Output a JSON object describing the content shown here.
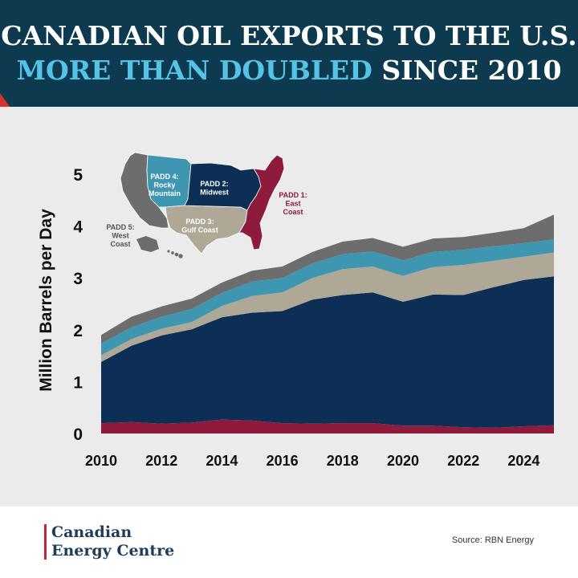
{
  "header": {
    "title_line1": "CANADIAN OIL EXPORTS TO THE U.S.",
    "title_line2_highlight": "MORE THAN DOUBLED",
    "title_line2_rest": " SINCE 2010",
    "colors": {
      "background": "#0d3a4f",
      "highlight": "#55c3e8",
      "accent": "#d8312b"
    }
  },
  "chart_data": {
    "type": "area",
    "stacked": true,
    "x": [
      2010,
      2011,
      2012,
      2013,
      2014,
      2015,
      2016,
      2017,
      2018,
      2019,
      2020,
      2021,
      2022,
      2023,
      2024,
      2025
    ],
    "series": [
      {
        "name": "PADD 1: East Coast",
        "color": "#8e1b3c",
        "values": [
          0.2,
          0.22,
          0.19,
          0.21,
          0.27,
          0.25,
          0.2,
          0.19,
          0.2,
          0.2,
          0.15,
          0.15,
          0.12,
          0.11,
          0.14,
          0.16
        ]
      },
      {
        "name": "PADD 2: Midwest",
        "color": "#0d2f55",
        "values": [
          1.18,
          1.47,
          1.7,
          1.8,
          1.97,
          2.08,
          2.16,
          2.39,
          2.47,
          2.52,
          2.39,
          2.53,
          2.55,
          2.71,
          2.82,
          2.87
        ]
      },
      {
        "name": "PADD 3: Gulf Coast",
        "color": "#b0a896",
        "values": [
          0.13,
          0.13,
          0.13,
          0.14,
          0.22,
          0.32,
          0.36,
          0.42,
          0.5,
          0.5,
          0.5,
          0.53,
          0.58,
          0.51,
          0.45,
          0.46
        ]
      },
      {
        "name": "PADD 4: Rocky Mountain",
        "color": "#3e96b1",
        "values": [
          0.22,
          0.23,
          0.23,
          0.25,
          0.25,
          0.28,
          0.28,
          0.28,
          0.29,
          0.29,
          0.3,
          0.29,
          0.29,
          0.28,
          0.26,
          0.25
        ]
      },
      {
        "name": "PADD 5: West Coast",
        "color": "#6d6d6d",
        "values": [
          0.17,
          0.2,
          0.2,
          0.2,
          0.2,
          0.21,
          0.22,
          0.22,
          0.24,
          0.26,
          0.26,
          0.26,
          0.25,
          0.26,
          0.29,
          0.48
        ]
      }
    ],
    "ylabel": "Million Barrels per Day",
    "xlabel": "",
    "ylim": [
      0,
      5
    ],
    "xlim": [
      2010,
      2025
    ],
    "yticks": [
      0,
      1,
      2,
      3,
      4,
      5
    ],
    "xticks": [
      2010,
      2012,
      2014,
      2016,
      2018,
      2020,
      2022,
      2024
    ],
    "grid": false
  },
  "map": {
    "labels": {
      "padd4": [
        "PADD 4:",
        "Rocky",
        "Mountain"
      ],
      "padd2": [
        "PADD 2:",
        "Midwest"
      ],
      "padd1": [
        "PADD 1:",
        "East",
        "Coast"
      ],
      "padd3": [
        "PADD 3:",
        "Gulf Coast"
      ],
      "padd5": [
        "PADD 5:",
        "West",
        "Coast"
      ]
    }
  },
  "footer": {
    "logo_line1": "Canadian",
    "logo_line2": "Energy Centre",
    "source": "Source: RBN Energy"
  }
}
